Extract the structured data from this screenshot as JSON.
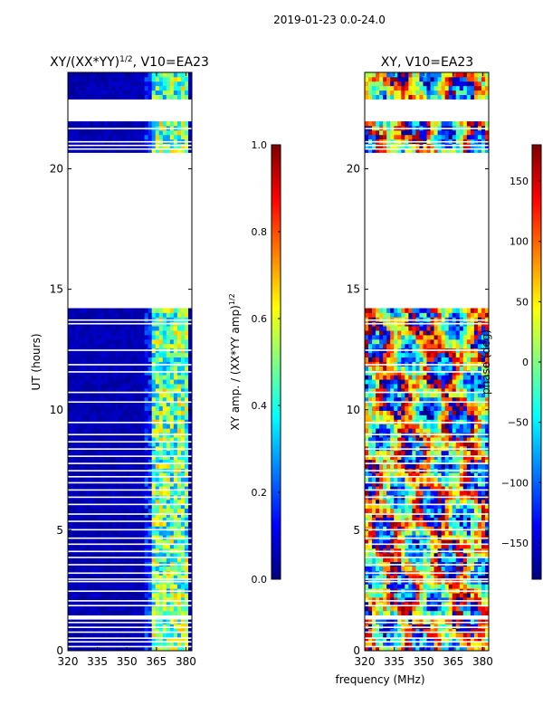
{
  "suptitle": "2019-01-23 0.0-24.0",
  "colors": {
    "background": "#ffffff",
    "jet": [
      "#00007f",
      "#0000ff",
      "#007fff",
      "#00ffff",
      "#7fff7f",
      "#ffff00",
      "#ff7f00",
      "#ff0000",
      "#7f0000"
    ]
  },
  "chart_data": [
    {
      "type": "heatmap",
      "title_main": "XY/(XX*YY)",
      "title_sup": "1/2",
      "title_rest": ", V10=EA23",
      "ylabel": "UT (hours)",
      "xlabel": "",
      "xlim": [
        320,
        383
      ],
      "ylim": [
        0,
        24
      ],
      "xticks": [
        "320",
        "335",
        "350",
        "365",
        "380"
      ],
      "xtick_values": [
        320,
        335,
        350,
        365,
        380
      ],
      "yticks": [
        "0",
        "5",
        "10",
        "15",
        "20"
      ],
      "ytick_values": [
        0,
        5,
        10,
        15,
        20
      ],
      "data_gaps_hours": [
        [
          1.35,
          1.55
        ],
        [
          14.15,
          20.7
        ],
        [
          21.95,
          22.95
        ]
      ],
      "bright_band_mhz": [
        363,
        382
      ],
      "colorbar": {
        "label_main": "XY amp. / (XX*YY amp)",
        "label_sup": "1/2",
        "range": [
          0.0,
          1.0
        ],
        "ticks": [
          "0.0",
          "0.2",
          "0.4",
          "0.6",
          "0.8",
          "1.0"
        ],
        "tick_values": [
          0.0,
          0.2,
          0.4,
          0.6,
          0.8,
          1.0
        ]
      }
    },
    {
      "type": "heatmap",
      "title_main": "XY, V10=EA23",
      "ylabel": "",
      "xlabel": "frequency (MHz)",
      "xlim": [
        320,
        383
      ],
      "ylim": [
        0,
        24
      ],
      "xticks": [
        "320",
        "335",
        "350",
        "365",
        "380"
      ],
      "xtick_values": [
        320,
        335,
        350,
        365,
        380
      ],
      "yticks": [
        "0",
        "5",
        "10",
        "15",
        "20"
      ],
      "ytick_values": [
        0,
        5,
        10,
        15,
        20
      ],
      "data_gaps_hours": [
        [
          1.35,
          1.55
        ],
        [
          14.15,
          20.7
        ],
        [
          21.95,
          22.95
        ]
      ],
      "colorbar": {
        "label": "phase (deg)",
        "range": [
          -180,
          180
        ],
        "ticks": [
          "150",
          "100",
          "50",
          "0",
          "−50",
          "−100",
          "−150"
        ],
        "tick_values": [
          150,
          100,
          50,
          0,
          -50,
          -100,
          -150
        ]
      }
    }
  ]
}
